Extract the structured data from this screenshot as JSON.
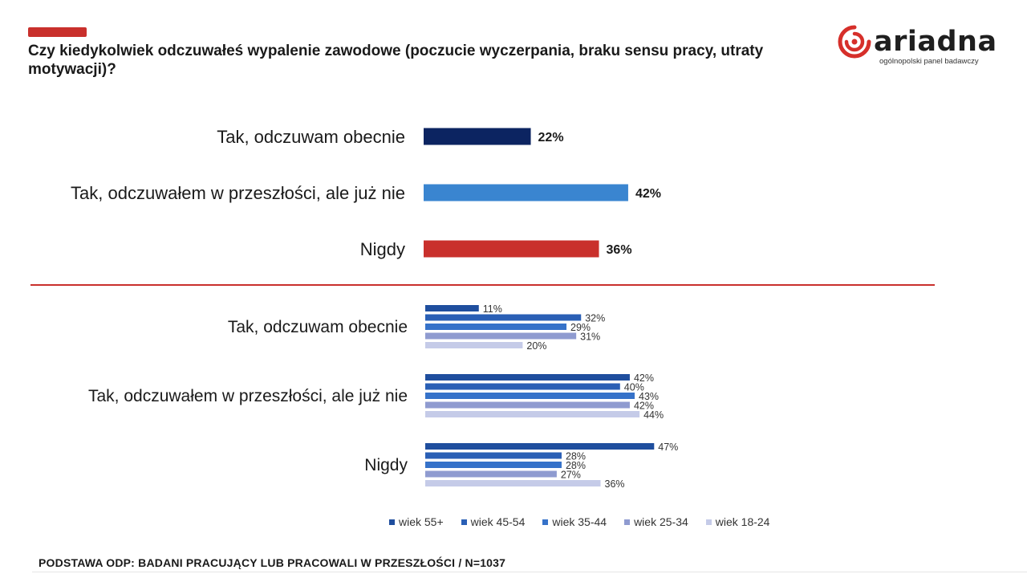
{
  "header": {
    "title": "Czy kiedykolwiek odczuwałeś wypalenie zawodowe (poczucie wyczerpania, braku sensu pracy, utraty motywacji)?",
    "accent_color": "#c9302c"
  },
  "logo": {
    "word": "ariadna",
    "sub": "ogólnopolski panel badawczy",
    "icon": "ariadna-spiral-icon"
  },
  "footer": {
    "text": "PODSTAWA ODP: BADANI PRACUJĄCY LUB PRACOWALI W PRZESZŁOŚCI / N=1037"
  },
  "chart_data": [
    {
      "type": "bar",
      "orientation": "horizontal",
      "categories": [
        "Tak, odczuwam obecnie",
        "Tak, odczuwałem w przeszłości, ale już nie",
        "Nigdy"
      ],
      "values": [
        22,
        42,
        36
      ],
      "value_labels": [
        "22%",
        "42%",
        "36%"
      ],
      "colors": [
        "#0c2461",
        "#3a85d0",
        "#c9302c"
      ],
      "unit": "%"
    },
    {
      "type": "bar",
      "orientation": "horizontal",
      "categories": [
        "Tak, odczuwam obecnie",
        "Tak, odczuwałem w przeszłości, ale już nie",
        "Nigdy"
      ],
      "series": [
        {
          "name": "wiek 55+",
          "color": "#1f4e9e",
          "values": [
            11,
            42,
            47
          ],
          "labels": [
            "11%",
            "42%",
            "47%"
          ]
        },
        {
          "name": "wiek 45-54",
          "color": "#2a5fb5",
          "values": [
            32,
            40,
            28
          ],
          "labels": [
            "32%",
            "40%",
            "28%"
          ]
        },
        {
          "name": "wiek 35-44",
          "color": "#3672c9",
          "values": [
            29,
            43,
            28
          ],
          "labels": [
            "29%",
            "43%",
            "28%"
          ]
        },
        {
          "name": "wiek 25-34",
          "color": "#8f9bd0",
          "values": [
            31,
            42,
            27
          ],
          "labels": [
            "31%",
            "42%",
            "27%"
          ]
        },
        {
          "name": "wiek 18-24",
          "color": "#c5cbe8",
          "values": [
            20,
            44,
            36
          ],
          "labels": [
            "20%",
            "44%",
            "36%"
          ]
        }
      ],
      "legend_position": "bottom",
      "unit": "%"
    }
  ]
}
